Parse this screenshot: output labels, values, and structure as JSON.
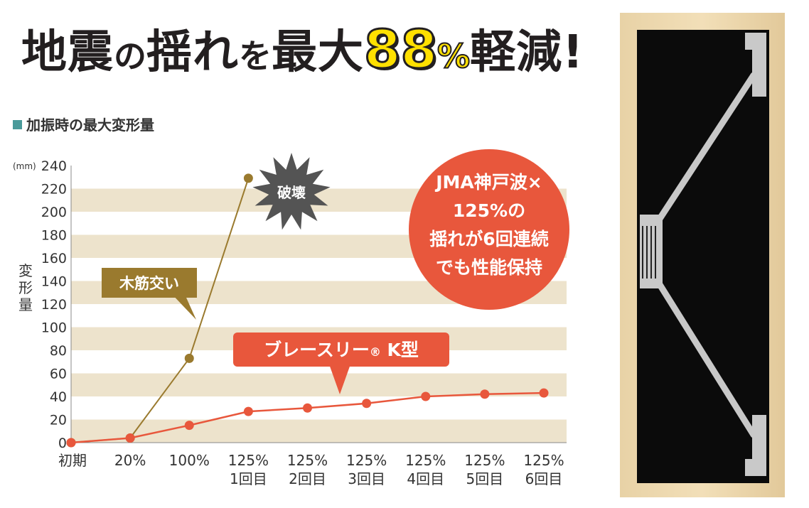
{
  "headline": {
    "part1": "地震",
    "part2": "の",
    "part3": "揺れ",
    "part4": "を",
    "part5": "最大",
    "highlight": "88",
    "percent": "%",
    "part6": "軽減!"
  },
  "subtitle": "加振時の最大変形量",
  "colors": {
    "brace_k": "#e8573c",
    "wood_brace": "#9a7a2e",
    "stripe": "#ede3cc",
    "callout_circle": "#e8573c",
    "burst": "#545454"
  },
  "chart_data": {
    "type": "line",
    "x_categories": [
      [
        "初期",
        ""
      ],
      [
        "20%",
        ""
      ],
      [
        "100%",
        ""
      ],
      [
        "125%",
        "1回目"
      ],
      [
        "125%",
        "2回目"
      ],
      [
        "125%",
        "3回目"
      ],
      [
        "125%",
        "4回目"
      ],
      [
        "125%",
        "5回目"
      ],
      [
        "125%",
        "6回目"
      ]
    ],
    "y_unit": "(mm)",
    "ylabel": "変形量",
    "ylim": [
      0,
      240
    ],
    "yticks": [
      0,
      20,
      40,
      60,
      80,
      100,
      120,
      140,
      160,
      180,
      200,
      220,
      240
    ],
    "series": [
      {
        "name": "ブレースリー®K型",
        "values": [
          0,
          4,
          15,
          27,
          30,
          34,
          40,
          42,
          43
        ]
      },
      {
        "name": "木筋交い",
        "values": [
          0,
          4,
          73,
          229
        ]
      }
    ],
    "annotations": {
      "burst": "破壊",
      "wood_label": "木筋交い",
      "brace_label_main": "ブレースリー",
      "brace_label_mark": "®",
      "brace_label_tail": " K型",
      "callout_lines": [
        "JMA神戸波×",
        "125%の",
        "揺れが6回連続",
        "でも性能保持"
      ]
    }
  }
}
